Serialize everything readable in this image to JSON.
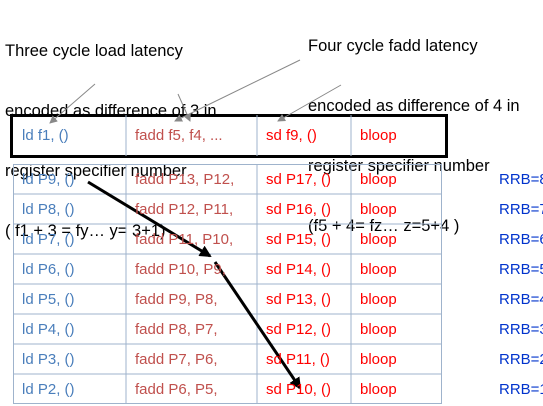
{
  "annotations": {
    "left": [
      "Three cycle load latency",
      "encoded as difference of 3 in",
      "register specifier number",
      "( f1 + 3 = fy… y= 3+1)"
    ],
    "right": [
      "Four cycle fadd latency",
      "encoded as difference of 4 in",
      "register specifier number",
      "(f5 + 4= fz… z=5+4 )"
    ]
  },
  "template_row": {
    "ld": "ld f1, ()",
    "fadd": "fadd f5, f4, ...",
    "sd": "sd f9, ()",
    "bloop": "bloop"
  },
  "rows": [
    {
      "ld": "ld P9, ()",
      "fadd": "fadd P13, P12,",
      "sd": "sd P17, ()",
      "bloop": "bloop",
      "rrb": "RRB=8"
    },
    {
      "ld": "ld P8, ()",
      "fadd": "fadd P12, P11,",
      "sd": "sd P16, ()",
      "bloop": "bloop",
      "rrb": "RRB=7"
    },
    {
      "ld": "ld P7, ()",
      "fadd": "fadd P11, P10,",
      "sd": "sd P15, ()",
      "bloop": "bloop",
      "rrb": "RRB=6"
    },
    {
      "ld": "ld P6, ()",
      "fadd": "fadd P10, P9,",
      "sd": "sd P14, ()",
      "bloop": "bloop",
      "rrb": "RRB=5"
    },
    {
      "ld": "ld P5, ()",
      "fadd": "fadd P9, P8,",
      "sd": "sd P13, ()",
      "bloop": "bloop",
      "rrb": "RRB=4"
    },
    {
      "ld": "ld P4, ()",
      "fadd": "fadd P8, P7,",
      "sd": "sd P12, ()",
      "bloop": "bloop",
      "rrb": "RRB=3"
    },
    {
      "ld": "ld P3, ()",
      "fadd": "fadd P7, P6,",
      "sd": "sd P11, ()",
      "bloop": "bloop",
      "rrb": "RRB=2"
    },
    {
      "ld": "ld P2, ()",
      "fadd": "fadd P6, P5,",
      "sd": "sd P10, ()",
      "bloop": "bloop",
      "rrb": "RRB=1"
    }
  ],
  "colors": {
    "ld": "#4a7ebb",
    "fadd": "#c0504d",
    "sd": "#ff0000",
    "rrb": "#0033cc",
    "grid": "#9fb3cc"
  }
}
